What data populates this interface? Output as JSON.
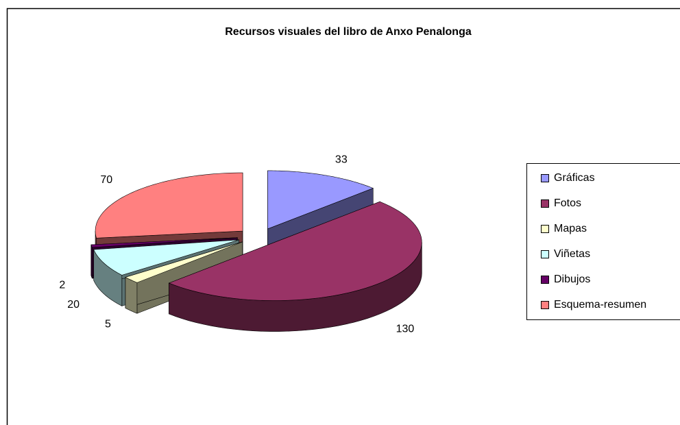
{
  "chart_data": {
    "type": "pie",
    "title": "Recursos visuales del libro de Anxo Penalonga",
    "categories": [
      "Gráficas",
      "Fotos",
      "Mapas",
      "Viñetas",
      "Dibujos",
      "Esquema-resumen"
    ],
    "values": [
      33,
      130,
      5,
      20,
      2,
      70
    ],
    "colors": [
      "#9999ff",
      "#993366",
      "#ffffcc",
      "#ccffff",
      "#660066",
      "#ff8080"
    ],
    "legend": "right"
  }
}
